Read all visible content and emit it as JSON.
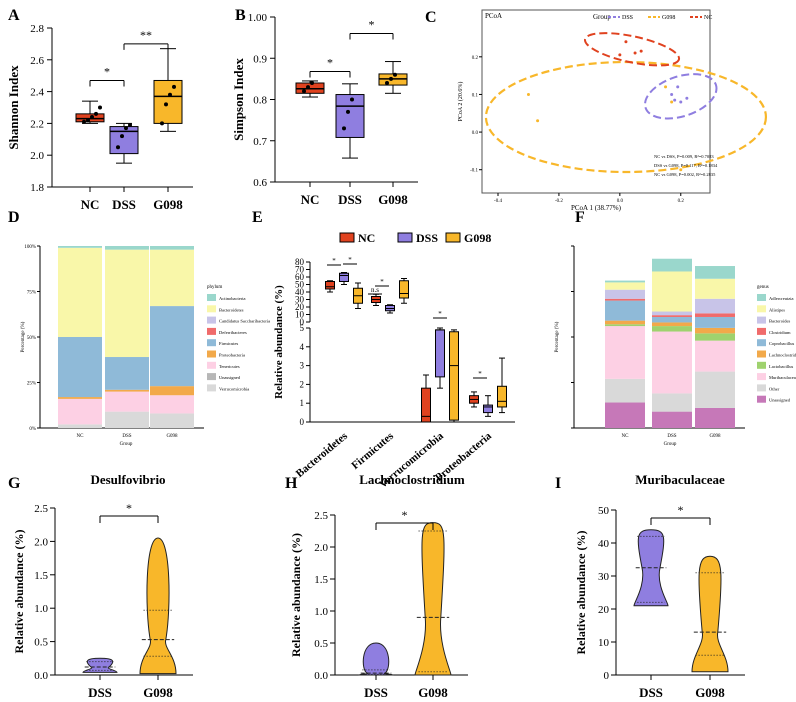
{
  "colors": {
    "nc": "#e0421f",
    "dss": "#8f7ee0",
    "g098": "#f8b72a",
    "firm": "#f9f7a9",
    "bact": "#8fbad8",
    "lach": "#fdd0e4",
    "prot": "#f2a94a",
    "teal": "#9ad7cc",
    "grey": "#d9d9d9",
    "purple": "#c678b8",
    "green": "#9fd26e",
    "red": "#f06b6b",
    "lav": "#c8c4e8"
  },
  "chart_data": [
    {
      "panel": "A",
      "type": "box",
      "ylabel": "Shannon Index",
      "ylim": [
        1.8,
        2.8
      ],
      "yticks": [
        "1.8",
        "2.0",
        "2.2",
        "2.4",
        "2.6",
        "2.8"
      ],
      "categories": [
        "NC",
        "DSS",
        "G098"
      ],
      "boxes": [
        {
          "min": 2.2,
          "q1": 2.21,
          "med": 2.23,
          "q3": 2.26,
          "max": 2.34,
          "pts": [
            2.21,
            2.22,
            2.24,
            2.26,
            2.3
          ]
        },
        {
          "min": 1.95,
          "q1": 2.01,
          "med": 2.15,
          "q3": 2.18,
          "max": 2.2,
          "pts": [
            2.05,
            2.12,
            2.17,
            2.19
          ]
        },
        {
          "min": 2.15,
          "q1": 2.2,
          "med": 2.37,
          "q3": 2.47,
          "max": 2.67,
          "pts": [
            2.2,
            2.32,
            2.38,
            2.43
          ]
        }
      ],
      "sig": [
        {
          "from": 0,
          "to": 1,
          "label": "*"
        },
        {
          "from": 1,
          "to": 2,
          "label": "**"
        }
      ]
    },
    {
      "panel": "B",
      "type": "box",
      "ylabel": "Simpson Index",
      "ylim": [
        0.6,
        1.0
      ],
      "yticks": [
        "0.6",
        "0.7",
        "0.8",
        "0.9",
        "1.00"
      ],
      "categories": [
        "NC",
        "DSS",
        "G098"
      ],
      "boxes": [
        {
          "min": 0.806,
          "q1": 0.815,
          "med": 0.826,
          "q3": 0.84,
          "max": 0.845,
          "pts": [
            0.82,
            0.83,
            0.84
          ]
        },
        {
          "min": 0.658,
          "q1": 0.708,
          "med": 0.784,
          "q3": 0.812,
          "max": 0.838,
          "pts": [
            0.73,
            0.77,
            0.8
          ]
        },
        {
          "min": 0.815,
          "q1": 0.835,
          "med": 0.85,
          "q3": 0.862,
          "max": 0.892,
          "pts": [
            0.84,
            0.85,
            0.86
          ]
        }
      ],
      "sig": [
        {
          "from": 0,
          "to": 1,
          "label": "*"
        },
        {
          "from": 1,
          "to": 2,
          "label": "*"
        }
      ]
    },
    {
      "panel": "C",
      "type": "scatter",
      "title": "PCoA",
      "xlabel": "PCoA 1 (38.77%)",
      "ylabel": "PCoA 2 (20.6%)",
      "legend_title": "Group",
      "legend": [
        "DSS",
        "G098",
        "NC"
      ],
      "xticks": [
        "-0.4",
        "-0.2",
        "0.0",
        "0.2"
      ],
      "yticks": [
        "0.2",
        "0.1",
        "0.0",
        "-0.1"
      ],
      "stats": [
        "NC vs DSS, P=0.009, R²=0.7083",
        "DSS vs G098, P=0.117, R²=0.1834",
        "NC vs G098, P=0.002, R²=0.2835"
      ],
      "points": {
        "nc": [
          [
            0.02,
            0.24
          ],
          [
            0.05,
            0.21
          ],
          [
            0.07,
            0.215
          ],
          [
            0.0,
            0.205
          ]
        ],
        "dss": [
          [
            0.17,
            0.1
          ],
          [
            0.18,
            0.085
          ],
          [
            0.2,
            0.08
          ],
          [
            0.22,
            0.09
          ],
          [
            0.19,
            0.12
          ]
        ],
        "g098": [
          [
            -0.3,
            0.1
          ],
          [
            -0.27,
            0.03
          ],
          [
            0.15,
            0.12
          ],
          [
            0.17,
            0.08
          ],
          [
            0.2,
            -0.1
          ]
        ]
      }
    },
    {
      "panel": "D",
      "type": "stacked_bar",
      "legend_title": "phylum",
      "xlabel": "Group",
      "ylabel": "Percentage (%)",
      "categories": [
        "NC",
        "DSS",
        "G098"
      ],
      "yticks": [
        "100%",
        "75%",
        "50%",
        "25%",
        "0%"
      ],
      "legend": [
        "Actinobacteria",
        "Bacteroidetes",
        "Candidatus Saccharibacteria",
        "Deferribacteres",
        "Firmicutes",
        "Proteobacteria",
        "Tenericutes",
        "Unassigned",
        "Verrucomicrobia"
      ],
      "stack_order": [
        "Verrucomicrobia",
        "Unassigned",
        "Proteobacteria",
        "Bacteroidetes",
        "Firmicutes",
        "Actinobacteria"
      ],
      "values": [
        [
          2,
          14,
          1,
          33,
          49,
          1
        ],
        [
          9,
          11,
          1,
          18,
          59,
          2
        ],
        [
          8,
          10,
          5,
          44,
          31,
          2
        ]
      ]
    },
    {
      "panel": "E",
      "type": "box",
      "ylabel": "Relative abundance (%)",
      "legend": [
        "NC",
        "DSS",
        "G098"
      ],
      "categories": [
        "Bacteroidetes",
        "Firmicutes",
        "Verrucomicrobia",
        "Proteobacteria"
      ],
      "yticks_top": [
        "0",
        "10",
        "20",
        "30",
        "40",
        "50",
        "60",
        "70",
        "80"
      ],
      "yticks_bottom": [
        "0",
        "1",
        "2",
        "3",
        "4",
        "5"
      ],
      "sig_labels": [
        "*",
        "*",
        "*",
        "*",
        "n.s",
        "*"
      ],
      "groups": [
        [
          {
            "q1": 44,
            "med": 47,
            "q3": 54,
            "min": 40,
            "max": 55
          },
          {
            "q1": 54,
            "med": 62,
            "q3": 65,
            "min": 50,
            "max": 66
          },
          {
            "q1": 25,
            "med": 35,
            "q3": 45,
            "min": 18,
            "max": 52
          }
        ],
        [
          {
            "q1": 26,
            "med": 30,
            "q3": 34,
            "min": 22,
            "max": 37
          },
          {
            "q1": 15,
            "med": 18,
            "q3": 22,
            "min": 12,
            "max": 23
          },
          {
            "q1": 32,
            "med": 38,
            "q3": 55,
            "min": 25,
            "max": 58
          }
        ],
        [
          {
            "q1": 0,
            "med": 0.3,
            "q3": 1.8,
            "min": 0,
            "max": 2.5
          },
          {
            "q1": 2.4,
            "med": 4.9,
            "q3": 4.9,
            "min": 1.8,
            "max": 5
          },
          {
            "q1": 0.1,
            "med": 3,
            "q3": 4.8,
            "min": 0,
            "max": 4.9
          }
        ],
        [
          {
            "q1": 1,
            "med": 1.2,
            "q3": 1.4,
            "min": 0.8,
            "max": 1.6
          },
          {
            "q1": 0.5,
            "med": 0.8,
            "q3": 0.9,
            "min": 0.3,
            "max": 1.4
          },
          {
            "q1": 0.8,
            "med": 1.1,
            "q3": 1.9,
            "min": 0.5,
            "max": 3.4
          }
        ]
      ]
    },
    {
      "panel": "F",
      "type": "stacked_bar",
      "legend_title": "genus",
      "xlabel": "Group",
      "ylabel": "Percentage (%)",
      "categories": [
        "NC",
        "DSS",
        "G098"
      ],
      "legend": [
        "Adlercreutzia",
        "Alistipes",
        "Bacteroides",
        "Clostridium",
        "Coprobacillus",
        "Lachnoclostridium",
        "Lactobacillus",
        "Muribaculaceae",
        "Other",
        "Unassigned"
      ],
      "stack_order": [
        "Unassigned",
        "Other",
        "Muribaculaceae",
        "Lactobacillus",
        "Lachnoclostridium",
        "Coprobacillus",
        "Clostridium",
        "Bacteroides",
        "Alistipes",
        "Adlercreutzia"
      ],
      "values": [
        [
          14,
          13,
          29,
          1,
          2,
          11,
          1,
          5,
          4,
          1
        ],
        [
          9,
          10,
          34,
          3,
          2,
          3,
          1,
          2,
          22,
          7
        ],
        [
          11,
          20,
          17,
          4,
          3,
          6,
          2,
          8,
          11,
          7
        ]
      ]
    },
    {
      "panel": "G",
      "type": "violin",
      "title": "Desulfovibrio",
      "ylabel": "Relative abundance (%)",
      "categories": [
        "DSS",
        "G098"
      ],
      "yticks": [
        "0.0",
        "0.5",
        "1.0",
        "1.5",
        "2.0",
        "2.5"
      ],
      "sig": "*",
      "violins": [
        {
          "min": 0.04,
          "max": 0.25,
          "q1": 0.07,
          "med": 0.12,
          "q3": 0.2
        },
        {
          "min": 0.02,
          "max": 2.05,
          "q1": 0.28,
          "med": 0.53,
          "q3": 0.97
        }
      ]
    },
    {
      "panel": "H",
      "type": "violin",
      "title": "Lachnoclostridium",
      "ylabel": "Relative abundance (%)",
      "categories": [
        "DSS",
        "G098"
      ],
      "yticks": [
        "0.0",
        "0.5",
        "1.0",
        "1.5",
        "2.0",
        "2.5"
      ],
      "sig": "*",
      "violins": [
        {
          "min": 0.0,
          "max": 0.5,
          "q1": 0.01,
          "med": 0.03,
          "q3": 0.08
        },
        {
          "min": 0.0,
          "max": 2.38,
          "q1": 0.05,
          "med": 0.9,
          "q3": 2.25
        }
      ]
    },
    {
      "panel": "I",
      "type": "violin",
      "title": "Muribaculaceae",
      "ylabel": "Relative abundance (%)",
      "categories": [
        "DSS",
        "G098"
      ],
      "yticks": [
        "0",
        "10",
        "20",
        "30",
        "40",
        "50"
      ],
      "sig": "*",
      "violins": [
        {
          "min": 21,
          "max": 44,
          "q1": 22,
          "med": 32.5,
          "q3": 42
        },
        {
          "min": 1,
          "max": 36,
          "q1": 6,
          "med": 13,
          "q3": 31
        }
      ]
    }
  ]
}
